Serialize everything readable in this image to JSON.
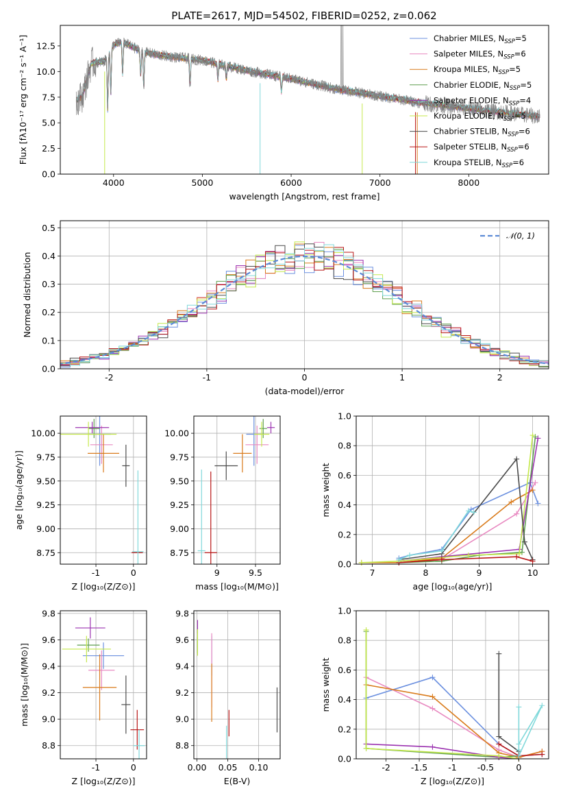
{
  "colors": {
    "Chabrier MILES": "#6a8fdf",
    "Salpeter MILES": "#e888c0",
    "Kroupa MILES": "#d97a1a",
    "Chabrier ELODIE": "#5e9e4e",
    "Salpeter ELODIE": "#9b32b0",
    "Kroupa ELODIE": "#c4e84a",
    "Chabrier STELIB": "#4a4a4a",
    "Salpeter STELIB": "#b81414",
    "Kroupa STELIB": "#7fd8da"
  },
  "chart_data": [
    {
      "id": "spectrum",
      "type": "line",
      "title": "PLATE=2617, MJD=54502, FIBERID=0252, z=0.062",
      "xlabel": "wavelength [Angstrom, rest frame]",
      "ylabel": "Flux [fλ10⁻¹⁷ erg cm⁻² s⁻¹ A⁻¹]",
      "xlim": [
        3400,
        8900
      ],
      "ylim": [
        0,
        14.5
      ],
      "xticks": [
        4000,
        5000,
        6000,
        7000,
        8000
      ],
      "yticks": [
        0.0,
        2.5,
        5.0,
        7.5,
        10.0,
        12.5
      ],
      "grid": false,
      "legend_position": "top-right",
      "legend": [
        {
          "label": "Chabrier MILES, N",
          "sub": "SSP",
          "suffix": "=5"
        },
        {
          "label": "Salpeter MILES, N",
          "sub": "SSP",
          "suffix": "=6"
        },
        {
          "label": "Kroupa MILES, N",
          "sub": "SSP",
          "suffix": "=5"
        },
        {
          "label": "Chabrier ELODIE, N",
          "sub": "SSP",
          "suffix": "=5"
        },
        {
          "label": "Salpeter ELODIE, N",
          "sub": "SSP",
          "suffix": "=4"
        },
        {
          "label": "Kroupa ELODIE, N",
          "sub": "SSP",
          "suffix": "=5"
        },
        {
          "label": "Chabrier STELIB, N",
          "sub": "SSP",
          "suffix": "=6"
        },
        {
          "label": "Salpeter STELIB, N",
          "sub": "SSP",
          "suffix": "=6"
        },
        {
          "label": "Kroupa STELIB, N",
          "sub": "SSP",
          "suffix": "=6"
        }
      ],
      "continuum": {
        "x": [
          3580,
          3650,
          3750,
          3900,
          4000,
          4100,
          4300,
          4500,
          5000,
          5500,
          6000,
          6500,
          7000,
          7500,
          8000,
          8500,
          8800
        ],
        "y": [
          7.2,
          7.6,
          10.8,
          11.0,
          12.6,
          12.9,
          12.0,
          11.6,
          11.1,
          10.1,
          9.3,
          8.3,
          7.6,
          6.9,
          6.4,
          5.9,
          5.6
        ]
      }
    },
    {
      "id": "residuals",
      "type": "line",
      "xlabel": "(data-model)/error",
      "ylabel": "Normed distribution",
      "xlim": [
        -2.5,
        2.5
      ],
      "ylim": [
        0.0,
        0.525
      ],
      "xticks": [
        -2,
        -1,
        0,
        1,
        2
      ],
      "yticks": [
        0.0,
        0.1,
        0.2,
        0.3,
        0.4,
        0.5
      ],
      "grid": true,
      "legend_position": "top-right",
      "legend": [
        {
          "label": "𝒩(0, 1)"
        }
      ],
      "normal_curve": {
        "mean": 0,
        "sigma": 1,
        "color": "#5b8ad6"
      }
    },
    {
      "id": "age_vs_Z",
      "type": "scatter",
      "xlabel": "Z [log₁₀(Z/Z⊙)]",
      "ylabel": "age  [log₁₀(age/yr)]",
      "xlim": [
        -1.95,
        0.35
      ],
      "ylim": [
        8.63,
        10.18
      ],
      "xticks": [
        -1,
        0
      ],
      "yticks": [
        8.75,
        9.0,
        9.25,
        9.5,
        9.75,
        10.0
      ],
      "grid": true,
      "points": [
        {
          "model": "Chabrier MILES",
          "x": -0.9,
          "y": 9.99,
          "ex": 0.3,
          "ey": 0.33
        },
        {
          "model": "Salpeter MILES",
          "x": -0.85,
          "y": 9.88,
          "ex": 0.3,
          "ey": 0.2
        },
        {
          "model": "Kroupa MILES",
          "x": -0.8,
          "y": 9.79,
          "ex": 0.42,
          "ey": 0.2
        },
        {
          "model": "Chabrier ELODIE",
          "x": -1.05,
          "y": 10.05,
          "ex": 0.15,
          "ey": 0.1
        },
        {
          "model": "Salpeter ELODIE",
          "x": -1.1,
          "y": 10.06,
          "ex": 0.45,
          "ey": 0.06
        },
        {
          "model": "Kroupa ELODIE",
          "x": -1.2,
          "y": 9.99,
          "ex": 0.75,
          "ey": 0.13
        },
        {
          "model": "Chabrier STELIB",
          "x": -0.2,
          "y": 9.66,
          "ex": 0.1,
          "ey": 0.22
        },
        {
          "model": "Salpeter STELIB",
          "x": 0.1,
          "y": 8.75,
          "ex": 0.15,
          "ey": 0.0
        },
        {
          "model": "Kroupa STELIB",
          "x": 0.12,
          "y": 8.76,
          "ex": 0.15,
          "ey": 0.85
        }
      ]
    },
    {
      "id": "age_vs_mass",
      "type": "scatter",
      "xlabel": "mass [log₁₀(M/M⊙)]",
      "ylabel": "",
      "xlim": [
        8.7,
        9.82
      ],
      "ylim": [
        8.63,
        10.18
      ],
      "xticks": [
        9.0,
        9.5
      ],
      "yticks": [
        8.75,
        9.0,
        9.25,
        9.5,
        9.75,
        10.0
      ],
      "grid": true,
      "points": [
        {
          "model": "Chabrier MILES",
          "x": 9.48,
          "y": 9.99,
          "ex": 0.1,
          "ey": 0.33
        },
        {
          "model": "Salpeter MILES",
          "x": 9.52,
          "y": 9.88,
          "ex": 0.15,
          "ey": 0.2
        },
        {
          "model": "Kroupa MILES",
          "x": 9.33,
          "y": 9.79,
          "ex": 0.12,
          "ey": 0.2
        },
        {
          "model": "Chabrier ELODIE",
          "x": 9.6,
          "y": 10.05,
          "ex": 0.05,
          "ey": 0.1
        },
        {
          "model": "Salpeter ELODIE",
          "x": 9.7,
          "y": 10.06,
          "ex": 0.05,
          "ey": 0.06
        },
        {
          "model": "Kroupa ELODIE",
          "x": 9.58,
          "y": 9.99,
          "ex": 0.1,
          "ey": 0.13
        },
        {
          "model": "Chabrier STELIB",
          "x": 9.12,
          "y": 9.66,
          "ex": 0.15,
          "ey": 0.15
        },
        {
          "model": "Salpeter STELIB",
          "x": 8.92,
          "y": 8.75,
          "ex": 0.08,
          "ey": 0.85
        },
        {
          "model": "Kroupa STELIB",
          "x": 8.8,
          "y": 8.77,
          "ex": 0.05,
          "ey": 0.85
        }
      ]
    },
    {
      "id": "weight_vs_age",
      "type": "line",
      "xlabel": "age  [log₁₀(age/yr)]",
      "ylabel": "mass weight",
      "xlim": [
        6.7,
        10.3
      ],
      "ylim": [
        0.0,
        1.0
      ],
      "xticks": [
        7,
        8,
        9,
        10
      ],
      "yticks": [
        0.0,
        0.2,
        0.4,
        0.6,
        0.8,
        1.0
      ],
      "grid": true,
      "series": [
        {
          "model": "Chabrier MILES",
          "x": [
            7.5,
            7.7,
            8.3,
            8.85,
            9.95,
            10.1
          ],
          "y": [
            0.04,
            0.06,
            0.1,
            0.37,
            0.55,
            0.41
          ]
        },
        {
          "model": "Salpeter MILES",
          "x": [
            7.5,
            8.3,
            9.7,
            10.05
          ],
          "y": [
            0.01,
            0.03,
            0.34,
            0.55
          ]
        },
        {
          "model": "Kroupa MILES",
          "x": [
            6.8,
            7.5,
            8.3,
            9.6,
            10.0
          ],
          "y": [
            0.01,
            0.01,
            0.04,
            0.42,
            0.5
          ]
        },
        {
          "model": "Chabrier ELODIE",
          "x": [
            7.5,
            8.3,
            9.0,
            9.8,
            10.05
          ],
          "y": [
            0.01,
            0.02,
            0.06,
            0.08,
            0.86
          ]
        },
        {
          "model": "Salpeter ELODIE",
          "x": [
            7.5,
            8.3,
            9.75,
            10.1
          ],
          "y": [
            0.02,
            0.05,
            0.1,
            0.85
          ]
        },
        {
          "model": "Kroupa ELODIE",
          "x": [
            6.8,
            7.5,
            8.8,
            9.75,
            10.0
          ],
          "y": [
            0.01,
            0.02,
            0.06,
            0.07,
            0.87
          ]
        },
        {
          "model": "Chabrier STELIB",
          "x": [
            7.5,
            8.3,
            9.7,
            9.85,
            10.0
          ],
          "y": [
            0.03,
            0.07,
            0.71,
            0.15,
            0.03
          ]
        },
        {
          "model": "Salpeter STELIB",
          "x": [
            7.5,
            8.3,
            9.7,
            10.0
          ],
          "y": [
            0.01,
            0.03,
            0.05,
            0.02
          ]
        },
        {
          "model": "Kroupa STELIB",
          "x": [
            7.5,
            7.7,
            8.3,
            8.8,
            8.9
          ],
          "y": [
            0.03,
            0.06,
            0.09,
            0.36,
            0.35
          ]
        }
      ]
    },
    {
      "id": "mass_vs_Z",
      "type": "scatter",
      "xlabel": "Z [log₁₀(Z/Z⊙)]",
      "ylabel": "mass [log₁₀(M/M⊙)]",
      "xlim": [
        -1.95,
        0.35
      ],
      "ylim": [
        8.7,
        9.82
      ],
      "xticks": [
        -1,
        0
      ],
      "yticks": [
        8.8,
        9.0,
        9.2,
        9.4,
        9.6,
        9.8
      ],
      "grid": true,
      "points": [
        {
          "model": "Chabrier MILES",
          "x": -0.8,
          "y": 9.48,
          "ex": 0.55,
          "ey": 0.1
        },
        {
          "model": "Salpeter MILES",
          "x": -0.85,
          "y": 9.37,
          "ex": 0.35,
          "ey": 0.15
        },
        {
          "model": "Kroupa MILES",
          "x": -0.9,
          "y": 9.24,
          "ex": 0.45,
          "ey": 0.25
        },
        {
          "model": "Chabrier ELODIE",
          "x": -1.2,
          "y": 9.56,
          "ex": 0.3,
          "ey": 0.05
        },
        {
          "model": "Salpeter ELODIE",
          "x": -1.15,
          "y": 9.69,
          "ex": 0.4,
          "ey": 0.08
        },
        {
          "model": "Kroupa ELODIE",
          "x": -1.25,
          "y": 9.53,
          "ex": 0.65,
          "ey": 0.1
        },
        {
          "model": "Chabrier STELIB",
          "x": -0.2,
          "y": 9.11,
          "ex": 0.12,
          "ey": 0.22
        },
        {
          "model": "Salpeter STELIB",
          "x": 0.1,
          "y": 8.92,
          "ex": 0.18,
          "ey": 0.15
        },
        {
          "model": "Kroupa STELIB",
          "x": 0.15,
          "y": 8.8,
          "ex": 0.15,
          "ey": 0.12
        }
      ]
    },
    {
      "id": "mass_vs_EBV",
      "type": "scatter",
      "xlabel": "E(B-V)",
      "ylabel": "",
      "xlim": [
        -0.005,
        0.135
      ],
      "ylim": [
        8.7,
        9.82
      ],
      "xticks": [
        0.0,
        0.05,
        0.1
      ],
      "yticks": [
        8.8,
        9.0,
        9.2,
        9.4,
        9.6,
        9.8
      ],
      "grid": true,
      "points": [
        {
          "model": "Chabrier MILES",
          "x": 0.024,
          "y": 9.48,
          "ex": 0,
          "ey": 0.15
        },
        {
          "model": "Salpeter MILES",
          "x": 0.024,
          "y": 9.37,
          "ex": 0,
          "ey": 0.28
        },
        {
          "model": "Kroupa MILES",
          "x": 0.024,
          "y": 9.2,
          "ex": 0,
          "ey": 0.22
        },
        {
          "model": "Chabrier ELODIE",
          "x": 0.001,
          "y": 9.56,
          "ex": 0,
          "ey": 0.06
        },
        {
          "model": "Salpeter ELODIE",
          "x": 0.001,
          "y": 9.7,
          "ex": 0,
          "ey": 0.05
        },
        {
          "model": "Kroupa ELODIE",
          "x": 0.001,
          "y": 9.58,
          "ex": 0,
          "ey": 0.1
        },
        {
          "model": "Chabrier STELIB",
          "x": 0.13,
          "y": 9.07,
          "ex": 0,
          "ey": 0.17
        },
        {
          "model": "Salpeter STELIB",
          "x": 0.052,
          "y": 8.97,
          "ex": 0,
          "ey": 0.1
        },
        {
          "model": "Kroupa STELIB",
          "x": 0.048,
          "y": 8.8,
          "ex": 0,
          "ey": 0.15
        }
      ]
    },
    {
      "id": "weight_vs_Z",
      "type": "line",
      "xlabel": "Z [log₁₀(Z/Z⊙)]",
      "ylabel": "mass weight",
      "xlim": [
        -2.45,
        0.45
      ],
      "ylim": [
        0.0,
        1.0
      ],
      "xticks": [
        -2.0,
        -1.5,
        -1.0,
        -0.5,
        0.0
      ],
      "yticks": [
        0.0,
        0.2,
        0.4,
        0.6,
        0.8,
        1.0
      ],
      "grid": true,
      "series": [
        {
          "model": "Chabrier MILES",
          "x": [
            -2.3,
            -1.3,
            -0.3,
            0.0,
            0.35
          ],
          "y": [
            0.41,
            0.55,
            0.1,
            0.02,
            0.03
          ]
        },
        {
          "model": "Salpeter MILES",
          "x": [
            -2.3,
            -1.3,
            -0.3,
            0.0,
            0.35
          ],
          "y": [
            0.55,
            0.34,
            0.06,
            0.01,
            0.05
          ]
        },
        {
          "model": "Kroupa MILES",
          "x": [
            -2.3,
            -1.3,
            -0.3,
            0.0,
            0.35
          ],
          "y": [
            0.5,
            0.42,
            0.04,
            0.01,
            0.05
          ]
        },
        {
          "model": "Chabrier ELODIE",
          "x": [
            -2.3,
            -2.3,
            -0.3,
            0.0
          ],
          "y": [
            0.86,
            0.07,
            0.01,
            0.02
          ]
        },
        {
          "model": "Salpeter ELODIE",
          "x": [
            -2.3,
            -1.3,
            -0.3,
            0.0
          ],
          "y": [
            0.1,
            0.08,
            0.01,
            0.0
          ]
        },
        {
          "model": "Kroupa ELODIE",
          "x": [
            -2.3,
            -2.3,
            -0.3,
            0.0
          ],
          "y": [
            0.87,
            0.07,
            0.02,
            0.0
          ]
        },
        {
          "model": "Chabrier STELIB",
          "x": [
            -0.3,
            -0.3,
            0.0,
            0.0
          ],
          "y": [
            0.71,
            0.15,
            0.05,
            0.02
          ]
        },
        {
          "model": "Salpeter STELIB",
          "x": [
            -0.3,
            0.0,
            0.35
          ],
          "y": [
            0.1,
            0.02,
            0.03
          ]
        },
        {
          "model": "Kroupa STELIB",
          "x": [
            0.0,
            0.0,
            0.0,
            0.35,
            0.0
          ],
          "y": [
            0.35,
            0.06,
            0.1,
            0.36,
            0.02
          ]
        }
      ]
    }
  ]
}
